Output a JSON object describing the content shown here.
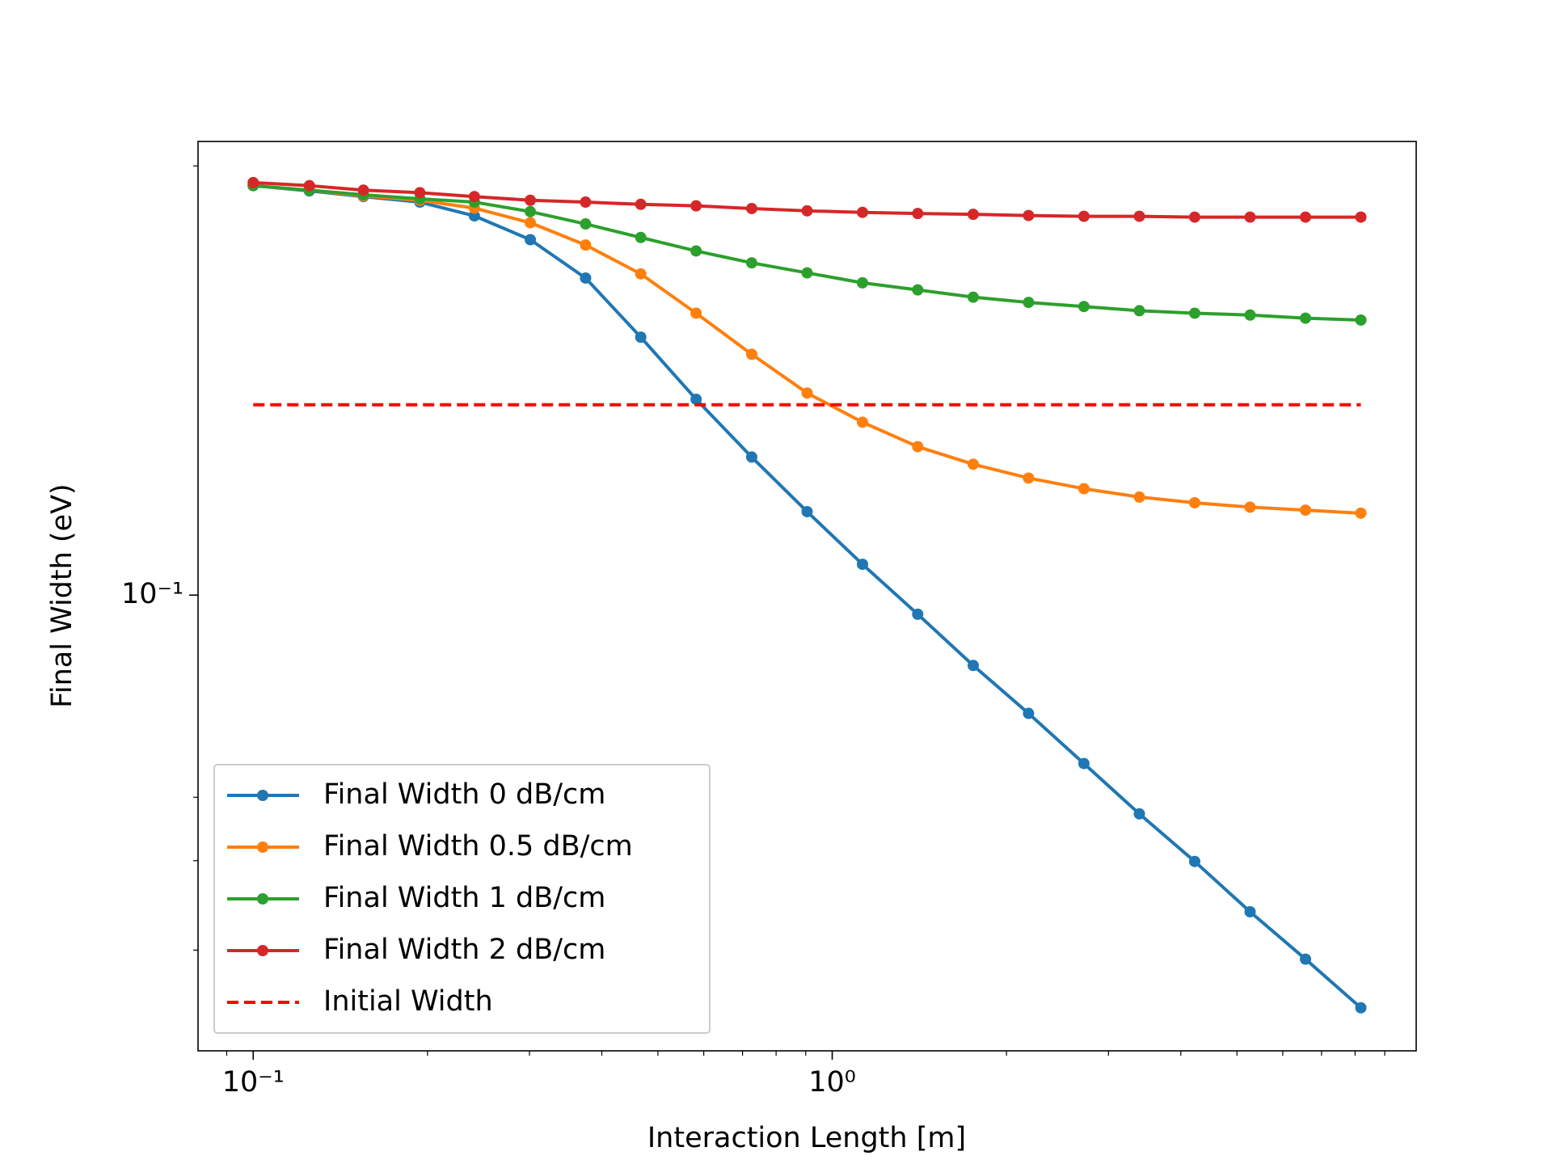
{
  "chart_data": {
    "type": "line",
    "xlabel": "Interaction Length [m]",
    "ylabel": "Final Width (eV)",
    "xscale": "log",
    "yscale": "log",
    "xlim": [
      0.0803,
      10.2
    ],
    "ylim": [
      0.01267,
      0.782
    ],
    "xticks": [
      {
        "value": 0.1,
        "label": "10⁻¹"
      },
      {
        "value": 1,
        "label": "10⁰"
      }
    ],
    "xminor": [
      0.09,
      0.2,
      0.3,
      0.4,
      0.5,
      0.6,
      0.7,
      0.8,
      0.9,
      2,
      3,
      4,
      5,
      6,
      7,
      8,
      9
    ],
    "yticks": [
      {
        "value": 0.1,
        "label": "10⁻¹"
      }
    ],
    "yminor": [
      0.02,
      0.03,
      0.04,
      0.7
    ],
    "legend": "lower left",
    "x": [
      0.1,
      0.125,
      0.155,
      0.194,
      0.241,
      0.301,
      0.375,
      0.467,
      0.582,
      0.726,
      0.905,
      1.128,
      1.405,
      1.752,
      2.183,
      2.721,
      3.392,
      4.227,
      5.269,
      6.568,
      8.185
    ],
    "series": [
      {
        "name": "Final Width 0 dB/cm",
        "color": "#1f77b4",
        "marker": true,
        "values": [
          0.64,
          0.625,
          0.609,
          0.594,
          0.558,
          0.501,
          0.421,
          0.322,
          0.243,
          0.187,
          0.146,
          0.115,
          0.0917,
          0.0727,
          0.0585,
          0.0466,
          0.0371,
          0.0299,
          0.0238,
          0.0192,
          0.0154
        ]
      },
      {
        "name": "Final Width 0.5 dB/cm",
        "color": "#ff7f0e",
        "marker": true,
        "values": [
          0.64,
          0.627,
          0.611,
          0.599,
          0.578,
          0.541,
          0.489,
          0.429,
          0.359,
          0.298,
          0.25,
          0.219,
          0.196,
          0.181,
          0.17,
          0.162,
          0.156,
          0.152,
          0.149,
          0.147,
          0.145
        ]
      },
      {
        "name": "Final Width 1 dB/cm",
        "color": "#2ca02c",
        "marker": true,
        "values": [
          0.64,
          0.627,
          0.614,
          0.603,
          0.594,
          0.569,
          0.538,
          0.506,
          0.476,
          0.451,
          0.431,
          0.412,
          0.399,
          0.386,
          0.377,
          0.37,
          0.363,
          0.359,
          0.356,
          0.351,
          0.348
        ]
      },
      {
        "name": "Final Width 2 dB/cm",
        "color": "#d62728",
        "marker": true,
        "values": [
          0.649,
          0.64,
          0.627,
          0.62,
          0.609,
          0.599,
          0.594,
          0.588,
          0.584,
          0.577,
          0.571,
          0.567,
          0.564,
          0.562,
          0.559,
          0.557,
          0.557,
          0.555,
          0.555,
          0.555,
          0.555
        ]
      },
      {
        "name": "Initial Width",
        "color": "#ff0000",
        "marker": false,
        "dashed": true,
        "x": [
          0.1,
          8.185
        ],
        "values": [
          0.237,
          0.237
        ]
      }
    ]
  }
}
